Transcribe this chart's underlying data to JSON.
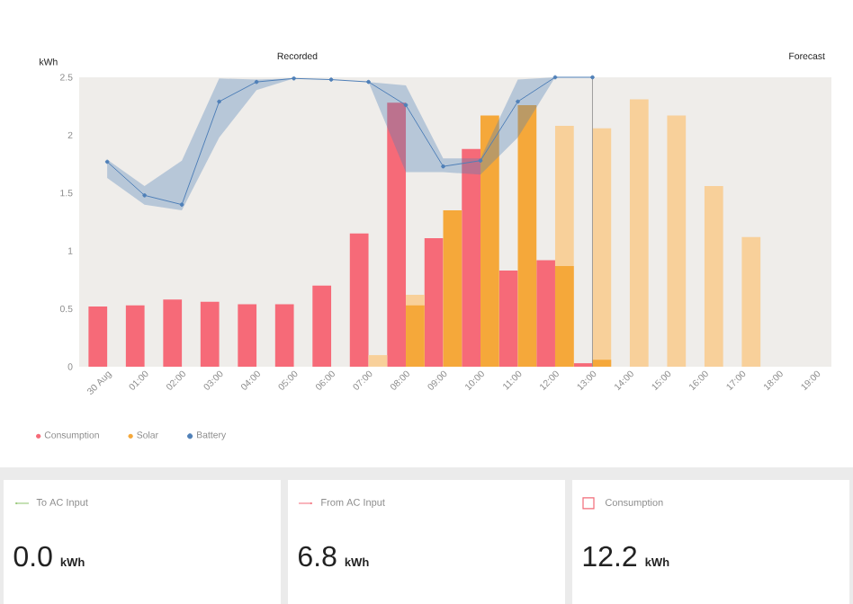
{
  "chart_data": [
    {
      "type": "bar",
      "ylabel": "kWh",
      "annotations": [
        "Recorded",
        "Forecast"
      ],
      "categories": [
        "30 Aug",
        "01:00",
        "02:00",
        "03:00",
        "04:00",
        "05:00",
        "06:00",
        "07:00",
        "08:00",
        "09:00",
        "10:00",
        "11:00",
        "12:00",
        "13:00",
        "14:00",
        "15:00",
        "16:00",
        "17:00",
        "18:00",
        "19:00"
      ],
      "series": [
        {
          "name": "Consumption",
          "type": "bar",
          "color": "#f66a78",
          "values": [
            0.52,
            0.53,
            0.58,
            0.56,
            0.54,
            0.54,
            0.7,
            1.15,
            2.28,
            1.11,
            1.88,
            0.83,
            0.92,
            0.03,
            null,
            null,
            null,
            null,
            null,
            null
          ]
        },
        {
          "type": "bar",
          "color": "#f8d09a",
          "values": [
            null,
            null,
            null,
            null,
            null,
            null,
            null,
            0.1,
            0.62,
            null,
            null,
            null,
            2.08,
            2.06,
            2.31,
            2.17,
            1.56,
            1.12,
            null,
            null
          ]
        },
        {
          "name": "Solar",
          "type": "bar",
          "color": "#f5a83a",
          "values": [
            null,
            null,
            null,
            null,
            null,
            null,
            null,
            null,
            0.53,
            1.35,
            2.17,
            2.26,
            0.87,
            0.06,
            null,
            null,
            null,
            null,
            null,
            null
          ]
        },
        {
          "name": "Battery",
          "type": "line",
          "color": "#4f80b8",
          "marker": "circle",
          "values": [
            1.77,
            1.48,
            1.4,
            2.29,
            2.46,
            2.49,
            2.48,
            2.46,
            2.26,
            1.73,
            1.78,
            2.29,
            2.5,
            2.5,
            null,
            null,
            null,
            null,
            null,
            null
          ],
          "lower": [
            1.63,
            1.4,
            1.35,
            1.98,
            2.39,
            2.49,
            2.48,
            2.46,
            1.68,
            1.68,
            1.66,
            1.98,
            2.5,
            2.5,
            null,
            null,
            null,
            null,
            null,
            null
          ],
          "upper": [
            1.79,
            1.56,
            1.78,
            2.49,
            2.48,
            2.49,
            2.48,
            2.46,
            2.43,
            1.8,
            1.8,
            2.48,
            2.5,
            2.5,
            null,
            null,
            null,
            null,
            null,
            null
          ]
        }
      ],
      "ylim": [
        0,
        2.5
      ],
      "yticks": [
        0,
        0.5,
        1,
        1.5,
        2,
        2.5
      ],
      "ref_lines": [
        {
          "axis": "x",
          "value": "13:00",
          "color": "#8a8a8a"
        }
      ],
      "legend": "bottom left"
    },
    {
      "type": "other",
      "title": "To AC Input",
      "annotations": [
        "0.0",
        "kWh"
      ]
    },
    {
      "type": "other",
      "title": "From AC Input",
      "annotations": [
        "6.8",
        "kWh"
      ]
    },
    {
      "type": "other",
      "title": "Consumption",
      "annotations": [
        "12.2",
        "kWh"
      ]
    }
  ]
}
